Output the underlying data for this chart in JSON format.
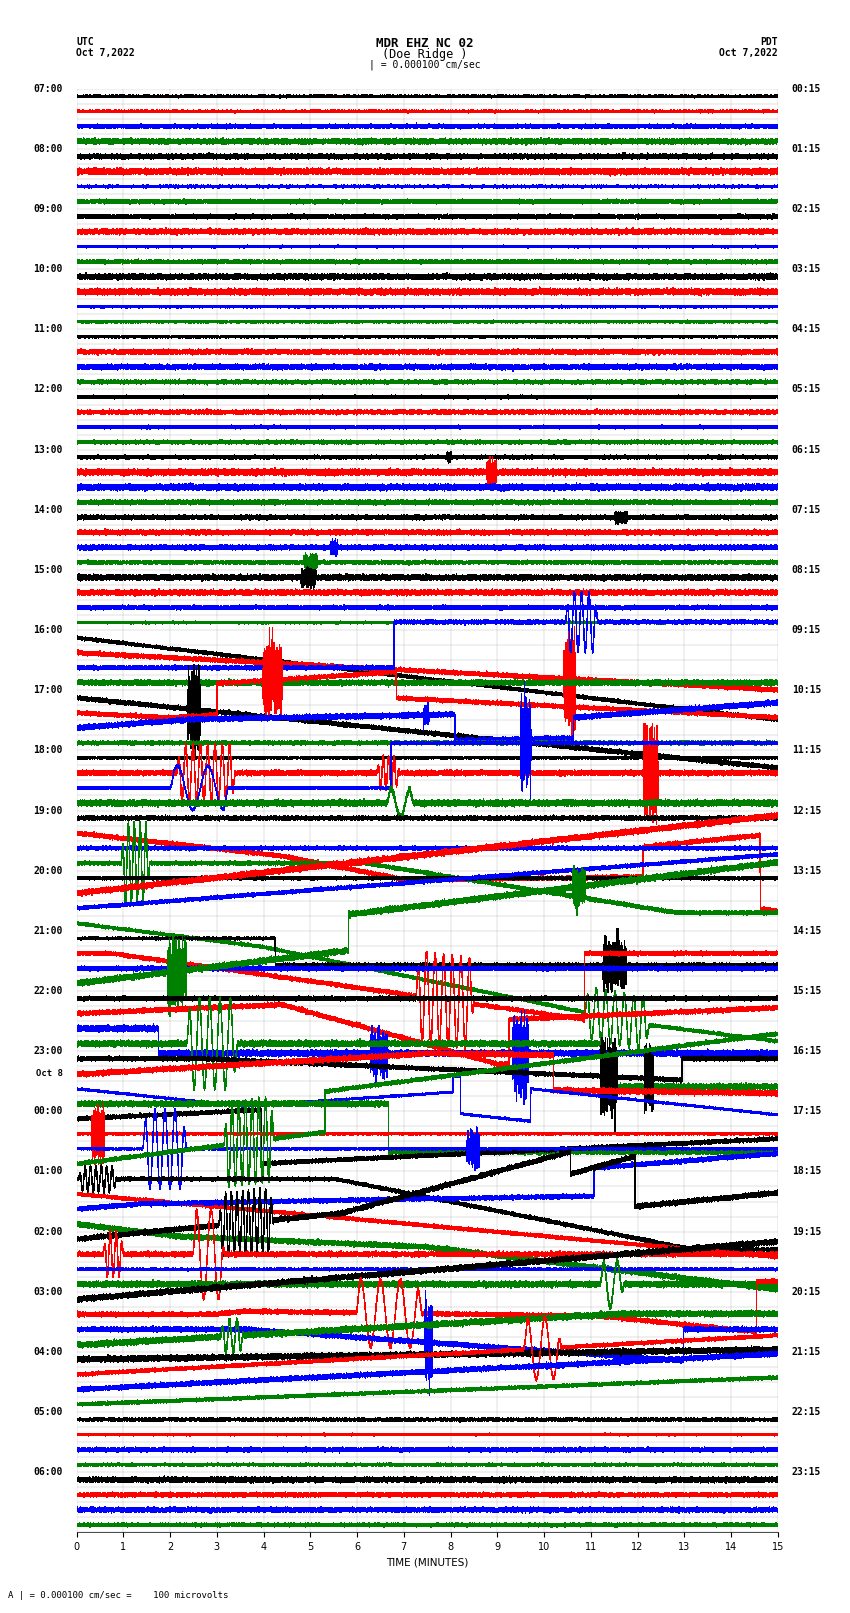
{
  "title_line1": "MDR EHZ NC 02",
  "title_line2": "(Doe Ridge )",
  "scale_label": "| = 0.000100 cm/sec",
  "left_label_top": "UTC",
  "left_label_date": "Oct 7,2022",
  "right_label_top": "PDT",
  "right_label_date": "Oct 7,2022",
  "xlabel": "TIME (MINUTES)",
  "footnote": "A | = 0.000100 cm/sec =    100 microvolts",
  "utc_times": [
    "07:00",
    "08:00",
    "09:00",
    "10:00",
    "11:00",
    "12:00",
    "13:00",
    "14:00",
    "15:00",
    "16:00",
    "17:00",
    "18:00",
    "19:00",
    "20:00",
    "21:00",
    "22:00",
    "23:00",
    "00:00",
    "01:00",
    "02:00",
    "03:00",
    "04:00",
    "05:00",
    "06:00"
  ],
  "pdt_times": [
    "00:15",
    "01:15",
    "02:15",
    "03:15",
    "04:15",
    "05:15",
    "06:15",
    "07:15",
    "08:15",
    "09:15",
    "10:15",
    "11:15",
    "12:15",
    "13:15",
    "14:15",
    "15:15",
    "16:15",
    "17:15",
    "18:15",
    "19:15",
    "20:15",
    "21:15",
    "22:15",
    "23:15"
  ],
  "n_rows": 24,
  "n_minutes": 15,
  "sample_rate": 100,
  "trace_colors": [
    "black",
    "red",
    "blue",
    "green"
  ],
  "traces_per_row": 4,
  "background_color": "white",
  "grid_color": "#888888",
  "fig_width": 8.5,
  "fig_height": 16.13,
  "dpi": 100,
  "title_fontsize": 9,
  "label_fontsize": 7.5,
  "tick_fontsize": 7,
  "xlim": [
    0,
    15
  ],
  "xticks": [
    0,
    1,
    2,
    3,
    4,
    5,
    6,
    7,
    8,
    9,
    10,
    11,
    12,
    13,
    14,
    15
  ]
}
